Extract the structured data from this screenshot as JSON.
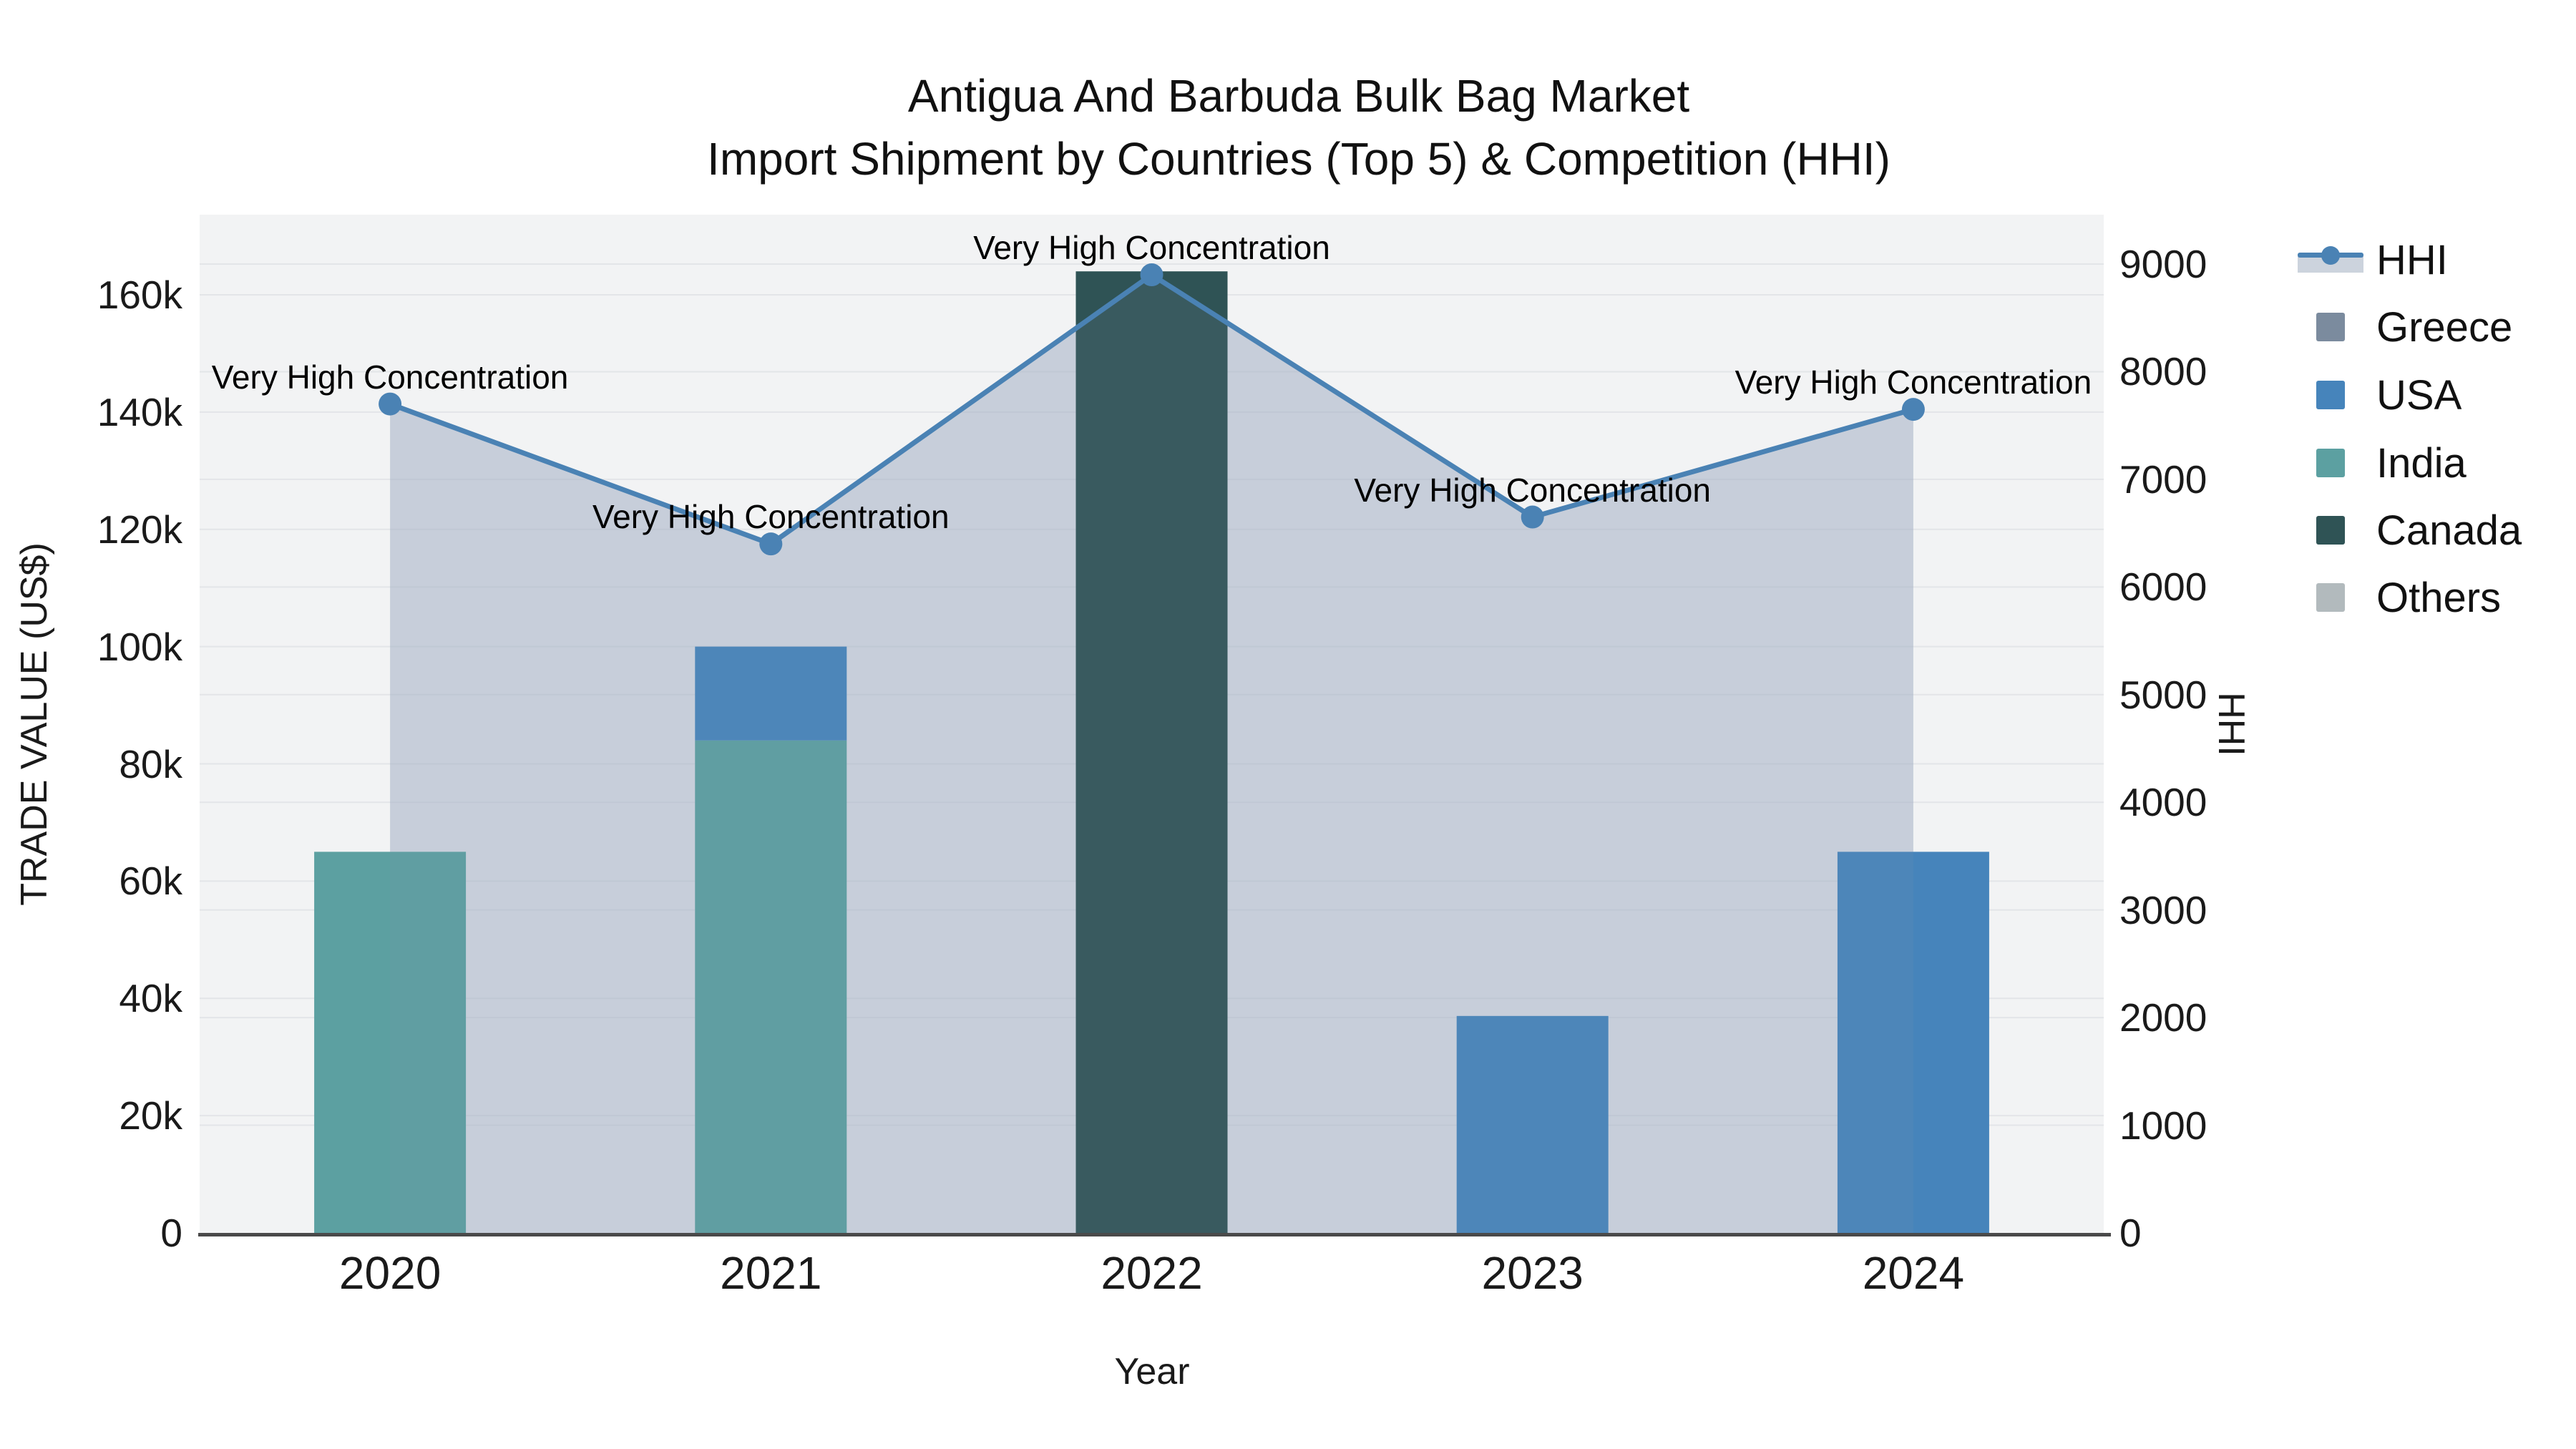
{
  "title": {
    "line1": "Antigua And Barbuda Bulk Bag Market",
    "line2": "Import Shipment by Countries (Top 5) & Competition (HHI)"
  },
  "colors": {
    "plot_bg": "#f2f3f4",
    "gridline": "#e3e5e8",
    "axis_line": "#4a4a4a",
    "hhi_line": "#4A82B4",
    "hhi_fill_under": "rgba(168,182,201,0.45)",
    "hhi_fill_over": "rgba(130,148,170,0.12)"
  },
  "legend": {
    "items": [
      {
        "label": "HHI",
        "type": "line",
        "color": "#4A82B4"
      },
      {
        "label": "Greece",
        "type": "swatch",
        "color": "#7B8B9E"
      },
      {
        "label": "USA",
        "type": "swatch",
        "color": "#4684BB"
      },
      {
        "label": "India",
        "type": "swatch",
        "color": "#5CA0A1"
      },
      {
        "label": "Canada",
        "type": "swatch",
        "color": "#2F5355"
      },
      {
        "label": "Others",
        "type": "swatch",
        "color": "#B2BABD"
      }
    ]
  },
  "chart_data": {
    "type": "bar+line",
    "title": "Antigua And Barbuda Bulk Bag Market Import Shipment by Countries (Top 5) & Competition (HHI)",
    "categories": [
      "2020",
      "2021",
      "2022",
      "2023",
      "2024"
    ],
    "xlabel": "Year",
    "ylabel_left": "TRADE VALUE (US$)",
    "ylabel_right": "HHI",
    "y_left_ticks": [
      {
        "label": "0",
        "value": 0
      },
      {
        "label": "20k",
        "value": 20000
      },
      {
        "label": "40k",
        "value": 40000
      },
      {
        "label": "60k",
        "value": 60000
      },
      {
        "label": "80k",
        "value": 80000
      },
      {
        "label": "100k",
        "value": 100000
      },
      {
        "label": "120k",
        "value": 120000
      },
      {
        "label": "140k",
        "value": 140000
      },
      {
        "label": "160k",
        "value": 160000
      }
    ],
    "y_right_ticks": [
      {
        "label": "0",
        "value": 0
      },
      {
        "label": "1000",
        "value": 1000
      },
      {
        "label": "2000",
        "value": 2000
      },
      {
        "label": "3000",
        "value": 3000
      },
      {
        "label": "4000",
        "value": 4000
      },
      {
        "label": "5000",
        "value": 5000
      },
      {
        "label": "6000",
        "value": 6000
      },
      {
        "label": "7000",
        "value": 7000
      },
      {
        "label": "8000",
        "value": 8000
      },
      {
        "label": "9000",
        "value": 9000
      }
    ],
    "y_left_range": [
      0,
      174000
    ],
    "y_right_range": [
      0,
      9460
    ],
    "grid": true,
    "legend_position": "right",
    "bar_series": [
      {
        "name": "India",
        "color": "#5CA0A1",
        "values": [
          65000,
          84000,
          0,
          0,
          0
        ]
      },
      {
        "name": "USA",
        "color": "#4684BB",
        "values": [
          0,
          16000,
          0,
          37000,
          65000
        ]
      },
      {
        "name": "Canada",
        "color": "#2F5355",
        "values": [
          0,
          0,
          164000,
          0,
          0
        ]
      },
      {
        "name": "Greece",
        "color": "#7B8B9E",
        "values": [
          0,
          0,
          0,
          0,
          0
        ]
      },
      {
        "name": "Others",
        "color": "#B2BABD",
        "values": [
          0,
          0,
          0,
          0,
          0
        ]
      }
    ],
    "line_series": {
      "name": "HHI",
      "axis": "right",
      "values": [
        7700,
        6400,
        8900,
        6650,
        7650
      ]
    },
    "annotations": [
      {
        "text": "Very High Concentration",
        "point_index": 0
      },
      {
        "text": "Very High Concentration",
        "point_index": 1
      },
      {
        "text": "Very High Concentration",
        "point_index": 2
      },
      {
        "text": "Very High Concentration",
        "point_index": 3
      },
      {
        "text": "Very High Concentration",
        "point_index": 4
      }
    ]
  }
}
